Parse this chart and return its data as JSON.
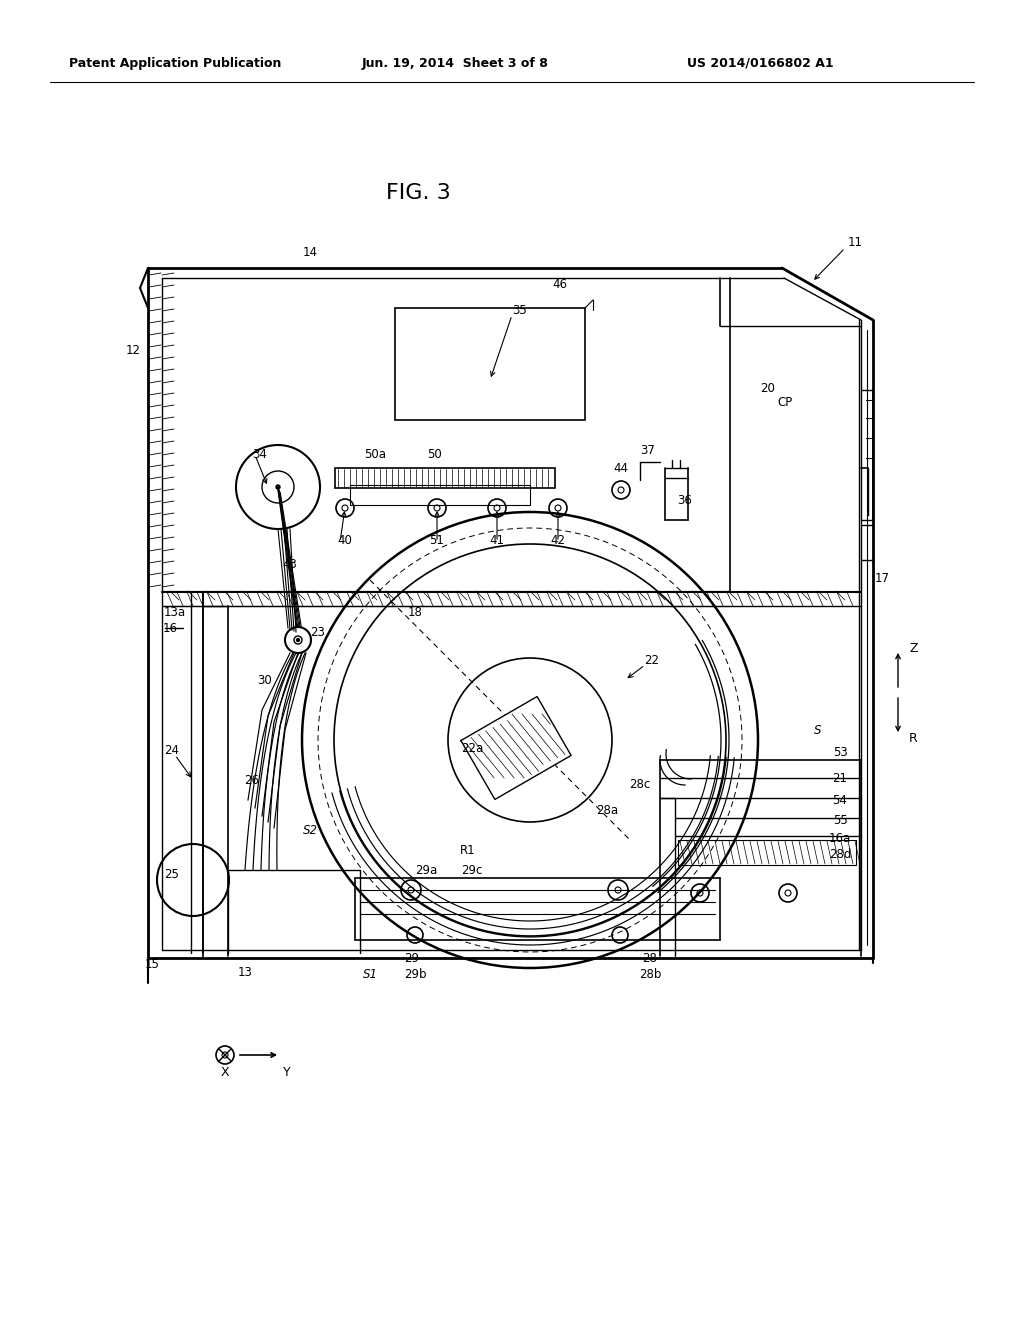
{
  "title": "FIG. 3",
  "header_left": "Patent Application Publication",
  "header_mid": "Jun. 19, 2014  Sheet 3 of 8",
  "header_right": "US 2014/0166802 A1",
  "bg_color": "#ffffff",
  "line_color": "#000000",
  "fig_width": 10.24,
  "fig_height": 13.2,
  "dpi": 100
}
